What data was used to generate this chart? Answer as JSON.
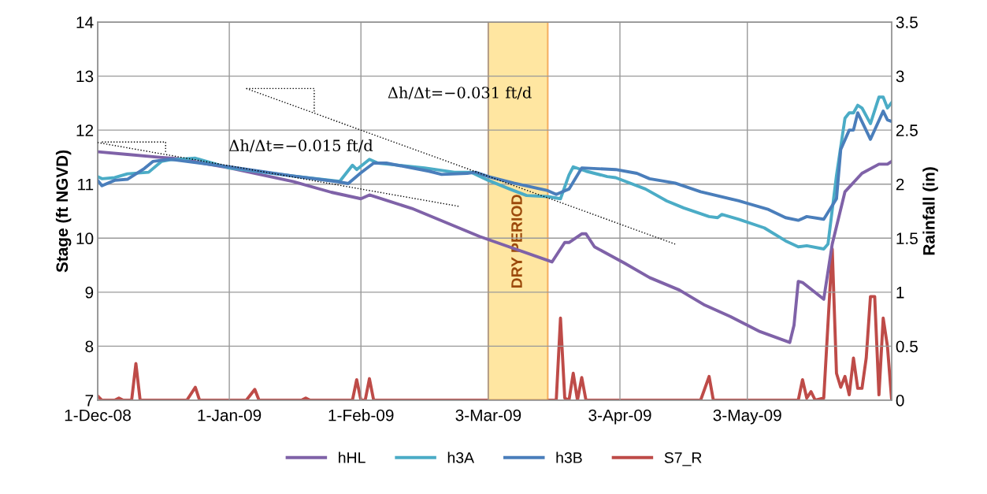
{
  "chart_data": {
    "type": "line",
    "xlabel": null,
    "ylabel": "Stage (ft NGVD)",
    "y2label": "Rainfall (in)",
    "xlim": [
      "2008-12-01",
      "2009-06-06"
    ],
    "xticks": [
      {
        "value": "2008-12-01",
        "label": "1-Dec-08"
      },
      {
        "value": "2009-01-01",
        "label": "1-Jan-09"
      },
      {
        "value": "2009-02-01",
        "label": "1-Feb-09"
      },
      {
        "value": "2009-03-03",
        "label": "3-Mar-09"
      },
      {
        "value": "2009-04-03",
        "label": "3-Apr-09"
      },
      {
        "value": "2009-05-03",
        "label": "3-May-09"
      }
    ],
    "ylim": [
      7,
      14
    ],
    "yticks": [
      7,
      8,
      9,
      10,
      11,
      12,
      13,
      14
    ],
    "y2lim": [
      0,
      3.5
    ],
    "y2ticks": [
      0,
      0.5,
      1,
      1.5,
      2,
      2.5,
      3,
      3.5
    ],
    "grid": true,
    "legend": "bottom",
    "bands": [
      {
        "axis": "x",
        "from": "2009-03-03",
        "to": "2009-03-17",
        "label": "DRY PERIOD",
        "color": "#ffe08a"
      }
    ],
    "annotations": [
      "Δh/Δt=−0.015 ft/d",
      "Δh/Δt=−0.031 ft/d"
    ],
    "series": [
      {
        "name": "hHL",
        "color": "#7f62a8",
        "x": [
          "2008-12-01",
          "2008-12-08",
          "2008-12-15",
          "2008-12-20",
          "2009-01-01",
          "2009-01-16",
          "2009-01-25",
          "2009-02-01",
          "2009-02-03",
          "2009-02-13",
          "2009-03-01",
          "2009-03-18",
          "2009-03-21",
          "2009-03-22",
          "2009-03-25",
          "2009-03-26",
          "2009-03-28",
          "2009-04-04",
          "2009-04-10",
          "2009-04-17",
          "2009-04-23",
          "2009-04-29",
          "2009-05-06",
          "2009-05-13",
          "2009-05-14",
          "2009-05-15",
          "2009-05-16",
          "2009-05-21",
          "2009-05-23",
          "2009-05-26",
          "2009-05-30",
          "2009-06-03",
          "2009-06-05",
          "2009-06-06"
        ],
        "values": [
          11.6,
          11.55,
          11.5,
          11.47,
          11.3,
          11.05,
          10.85,
          10.73,
          10.8,
          10.55,
          10.03,
          9.56,
          9.92,
          9.92,
          10.08,
          10.08,
          9.84,
          9.54,
          9.27,
          9.04,
          8.76,
          8.55,
          8.27,
          8.07,
          8.39,
          9.2,
          9.18,
          8.87,
          9.89,
          10.86,
          11.2,
          11.37,
          11.37,
          11.42
        ]
      },
      {
        "name": "h3A",
        "color": "#4bacc6",
        "x": [
          "2008-12-01",
          "2008-12-02",
          "2008-12-05",
          "2008-12-08",
          "2008-12-13",
          "2008-12-16",
          "2008-12-18",
          "2008-12-24",
          "2009-01-01",
          "2009-01-16",
          "2009-01-27",
          "2009-01-30",
          "2009-01-31",
          "2009-02-03",
          "2009-02-05",
          "2009-02-16",
          "2009-02-23",
          "2009-02-27",
          "2009-03-03",
          "2009-03-08",
          "2009-03-12",
          "2009-03-17",
          "2009-03-20",
          "2009-03-22",
          "2009-03-23",
          "2009-03-26",
          "2009-03-31",
          "2009-04-02",
          "2009-04-09",
          "2009-04-14",
          "2009-04-18",
          "2009-04-24",
          "2009-04-26",
          "2009-04-27",
          "2009-05-01",
          "2009-05-07",
          "2009-05-12",
          "2009-05-15",
          "2009-05-17",
          "2009-05-21",
          "2009-05-22",
          "2009-05-24",
          "2009-05-26",
          "2009-05-27",
          "2009-05-28",
          "2009-05-29",
          "2009-05-30",
          "2009-06-01",
          "2009-06-03",
          "2009-06-04",
          "2009-06-05",
          "2009-06-06"
        ],
        "values": [
          11.14,
          11.1,
          11.12,
          11.19,
          11.22,
          11.42,
          11.45,
          11.48,
          11.3,
          11.15,
          11.05,
          11.35,
          11.27,
          11.46,
          11.39,
          11.3,
          11.22,
          11.22,
          11.07,
          10.91,
          10.79,
          10.77,
          10.73,
          11.17,
          11.32,
          11.24,
          11.14,
          11.12,
          10.91,
          10.69,
          10.56,
          10.4,
          10.38,
          10.44,
          10.35,
          10.19,
          9.95,
          9.84,
          9.86,
          9.8,
          9.89,
          11.16,
          12.22,
          12.32,
          12.32,
          12.46,
          12.41,
          12.12,
          12.61,
          12.61,
          12.41,
          12.51
        ]
      },
      {
        "name": "h3B",
        "color": "#4a7ebb",
        "x": [
          "2008-12-01",
          "2008-12-02",
          "2008-12-05",
          "2008-12-08",
          "2008-12-12",
          "2008-12-14",
          "2008-12-18",
          "2009-01-01",
          "2009-01-16",
          "2009-01-27",
          "2009-01-29",
          "2009-02-01",
          "2009-02-04",
          "2009-02-07",
          "2009-02-17",
          "2009-02-20",
          "2009-02-26",
          "2009-02-28",
          "2009-03-03",
          "2009-03-09",
          "2009-03-17",
          "2009-03-19",
          "2009-03-22",
          "2009-03-25",
          "2009-04-02",
          "2009-04-07",
          "2009-04-10",
          "2009-04-16",
          "2009-04-22",
          "2009-05-01",
          "2009-05-08",
          "2009-05-12",
          "2009-05-15",
          "2009-05-17",
          "2009-05-21",
          "2009-05-24",
          "2009-05-25",
          "2009-05-27",
          "2009-05-28",
          "2009-05-29",
          "2009-06-01",
          "2009-06-04",
          "2009-06-05",
          "2009-06-06"
        ],
        "values": [
          11.07,
          10.97,
          11.07,
          11.09,
          11.29,
          11.42,
          11.46,
          11.32,
          11.15,
          11.04,
          11.01,
          11.21,
          11.39,
          11.39,
          11.24,
          11.18,
          11.2,
          11.22,
          11.14,
          11.02,
          10.88,
          10.81,
          10.91,
          11.3,
          11.27,
          11.2,
          11.1,
          11.02,
          10.86,
          10.69,
          10.53,
          10.38,
          10.33,
          10.4,
          10.35,
          10.73,
          11.64,
          12.0,
          12.0,
          12.32,
          11.83,
          12.35,
          12.19,
          12.16
        ]
      },
      {
        "name": "S7_R",
        "color": "#be4b48",
        "axis": "y2",
        "x": [
          "2008-12-01",
          "2008-12-02",
          "2008-12-05",
          "2008-12-06",
          "2008-12-07",
          "2008-12-09",
          "2008-12-10",
          "2008-12-11",
          "2008-12-22",
          "2008-12-24",
          "2008-12-25",
          "2009-01-05",
          "2009-01-07",
          "2009-01-08",
          "2009-01-18",
          "2009-01-19",
          "2009-01-20",
          "2009-01-30",
          "2009-01-31",
          "2009-02-01",
          "2009-02-02",
          "2009-02-03",
          "2009-02-04",
          "2009-03-19",
          "2009-03-20",
          "2009-03-21",
          "2009-03-22",
          "2009-03-23",
          "2009-03-24",
          "2009-03-25",
          "2009-03-26",
          "2009-04-22",
          "2009-04-24",
          "2009-04-25",
          "2009-05-15",
          "2009-05-16",
          "2009-05-17",
          "2009-05-18",
          "2009-05-19",
          "2009-05-21",
          "2009-05-23",
          "2009-05-24",
          "2009-05-25",
          "2009-05-26",
          "2009-05-27",
          "2009-05-28",
          "2009-05-29",
          "2009-05-30",
          "2009-05-31",
          "2009-06-01",
          "2009-06-02",
          "2009-06-03",
          "2009-06-04",
          "2009-06-05",
          "2009-06-06"
        ],
        "values": [
          0.04,
          0,
          0,
          0.02,
          0,
          0,
          0.34,
          0,
          0,
          0.12,
          0,
          0,
          0.1,
          0,
          0,
          0.02,
          0,
          0,
          0.19,
          0,
          0,
          0.2,
          0,
          0,
          0.76,
          0.02,
          0,
          0.25,
          0,
          0.21,
          0,
          0,
          0.22,
          0,
          0,
          0.19,
          0.02,
          0.08,
          0,
          0.02,
          1.4,
          0.25,
          0.12,
          0.22,
          0.05,
          0.39,
          0.11,
          0.11,
          0.39,
          0.96,
          0.96,
          0.05,
          0.76,
          0.5,
          0
        ]
      },
      {
        "type": "line",
        "color": "#000000",
        "line_style": "dotted",
        "x": [
          "2008-12-01",
          "2009-02-24"
        ],
        "values": [
          11.77,
          10.59
        ]
      },
      {
        "type": "line",
        "color": "#000000",
        "line_style": "dotted",
        "x": [
          "2009-01-05",
          "2009-04-16"
        ],
        "values": [
          12.77,
          9.89
        ]
      },
      {
        "type": "line",
        "color": "#000000",
        "line_style": "dotted",
        "x": [
          "2008-12-02",
          "2008-12-17",
          "2008-12-17"
        ],
        "values": [
          11.78,
          11.78,
          11.59
        ]
      },
      {
        "type": "line",
        "color": "#000000",
        "line_style": "dotted",
        "x": [
          "2009-01-05",
          "2009-01-21",
          "2009-01-21"
        ],
        "values": [
          12.77,
          12.77,
          12.32
        ]
      }
    ]
  }
}
